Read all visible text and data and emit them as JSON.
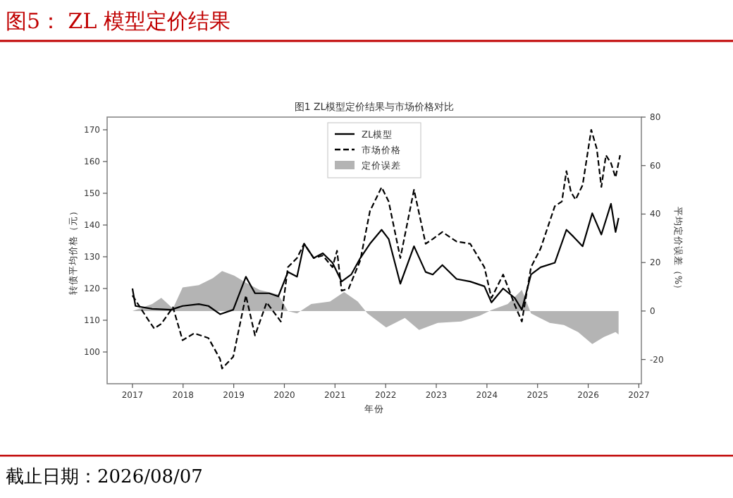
{
  "chart_data": {
    "type": "line",
    "title": "图5：  ZL 模型定价结果",
    "subtitle": "图1 ZL模型定价结果与市场价格对比",
    "xlabel": "年份",
    "ylabel": "转债平均价格（元）",
    "y2label": "平均定价误差（%）",
    "annotations": [
      "截止日期：2026/08/07"
    ],
    "xlim": [
      2016.5,
      2027.05
    ],
    "xticks": [
      2017,
      2018,
      2019,
      2020,
      2021,
      2022,
      2023,
      2024,
      2025,
      2026,
      2027
    ],
    "ylim": [
      90,
      174
    ],
    "yticks": [
      100,
      110,
      120,
      130,
      140,
      150,
      160,
      170
    ],
    "y2lim": [
      -30,
      80
    ],
    "y2ticks": [
      -20,
      0,
      20,
      40,
      60,
      80
    ],
    "legend": "top",
    "grid": false,
    "marker": "none",
    "series": [
      {
        "name": "ZL模型",
        "color": "#000000",
        "line_style": "solid",
        "x": [
          2017.0,
          2017.06,
          2017.39,
          2017.76,
          2017.99,
          2018.31,
          2018.5,
          2018.73,
          2018.99,
          2019.24,
          2019.42,
          2019.7,
          2019.88,
          2020.07,
          2020.25,
          2020.39,
          2020.58,
          2020.76,
          2020.95,
          2021.13,
          2021.32,
          2021.5,
          2021.69,
          2021.92,
          2022.06,
          2022.29,
          2022.56,
          2022.79,
          2022.93,
          2023.12,
          2023.4,
          2023.67,
          2023.95,
          2024.09,
          2024.32,
          2024.55,
          2024.69,
          2024.87,
          2025.06,
          2025.34,
          2025.57,
          2025.71,
          2025.89,
          2026.08,
          2026.26,
          2026.45,
          2026.54,
          2026.6
        ],
        "values": [
          120.0,
          114.5,
          113.6,
          113.3,
          114.5,
          115.1,
          114.5,
          111.9,
          113.3,
          123.7,
          118.5,
          118.5,
          117.5,
          125.2,
          123.7,
          134.1,
          129.6,
          131.1,
          128.1,
          122.2,
          124.4,
          129.6,
          134.1,
          138.5,
          135.6,
          121.5,
          133.3,
          125.2,
          124.4,
          127.4,
          123.0,
          122.2,
          120.7,
          115.6,
          120.0,
          117.0,
          113.3,
          124.4,
          126.7,
          128.1,
          138.5,
          136.3,
          133.3,
          143.7,
          137.0,
          146.7,
          137.8,
          142.2
        ]
      },
      {
        "name": "市场价格",
        "color": "#000000",
        "line_style": "dashed",
        "x": [
          2017.0,
          2017.3,
          2017.43,
          2017.57,
          2017.8,
          2017.99,
          2018.22,
          2018.5,
          2018.73,
          2018.77,
          2018.99,
          2019.24,
          2019.42,
          2019.65,
          2019.93,
          2020.07,
          2020.25,
          2020.39,
          2020.58,
          2020.76,
          2020.95,
          2021.04,
          2021.13,
          2021.27,
          2021.5,
          2021.69,
          2021.92,
          2022.06,
          2022.29,
          2022.56,
          2022.79,
          2022.93,
          2023.12,
          2023.4,
          2023.67,
          2023.95,
          2024.09,
          2024.32,
          2024.55,
          2024.69,
          2024.87,
          2025.06,
          2025.34,
          2025.48,
          2025.57,
          2025.66,
          2025.75,
          2025.89,
          2026.06,
          2026.17,
          2026.26,
          2026.35,
          2026.45,
          2026.54,
          2026.63
        ],
        "values": [
          117.8,
          110.4,
          107.4,
          108.9,
          114.1,
          103.7,
          105.9,
          104.4,
          97.8,
          94.8,
          98.5,
          117.8,
          105.2,
          115.6,
          109.6,
          126.7,
          129.6,
          134.1,
          129.6,
          130.4,
          126.7,
          131.9,
          119.3,
          120.0,
          128.9,
          144.4,
          151.9,
          147.4,
          129.6,
          151.1,
          134.1,
          135.6,
          137.8,
          134.8,
          134.1,
          126.7,
          117.0,
          124.4,
          114.8,
          109.6,
          126.7,
          132.6,
          145.9,
          147.4,
          157.0,
          150.4,
          148.0,
          152.6,
          170.0,
          164.0,
          152.0,
          162.0,
          159.5,
          155.0,
          162.0
        ]
      },
      {
        "name": "定价误差",
        "type": "area",
        "axis": "y2",
        "color": "#b4b4b4",
        "x": [
          2017.0,
          2017.39,
          2017.57,
          2017.8,
          2017.99,
          2018.31,
          2018.59,
          2018.77,
          2019.01,
          2019.24,
          2019.51,
          2019.88,
          2020.07,
          2020.25,
          2020.53,
          2020.9,
          2021.18,
          2021.45,
          2021.64,
          2022.01,
          2022.38,
          2022.66,
          2023.03,
          2023.49,
          2023.86,
          2024.09,
          2024.41,
          2024.69,
          2024.87,
          2025.24,
          2025.52,
          2025.8,
          2026.08,
          2026.31,
          2026.54,
          2026.6
        ],
        "values": [
          0,
          2.9,
          5.4,
          1.0,
          9.7,
          10.7,
          13.6,
          16.5,
          14.6,
          11.7,
          8.7,
          6.8,
          0,
          -1.0,
          2.9,
          3.9,
          7.8,
          3.9,
          -1.0,
          -6.8,
          -2.9,
          -7.8,
          -4.9,
          -4.3,
          -1.9,
          0.4,
          2.9,
          8.7,
          -1.0,
          -4.9,
          -5.8,
          -8.7,
          -13.6,
          -10.7,
          -8.7,
          -9.7
        ]
      }
    ]
  }
}
